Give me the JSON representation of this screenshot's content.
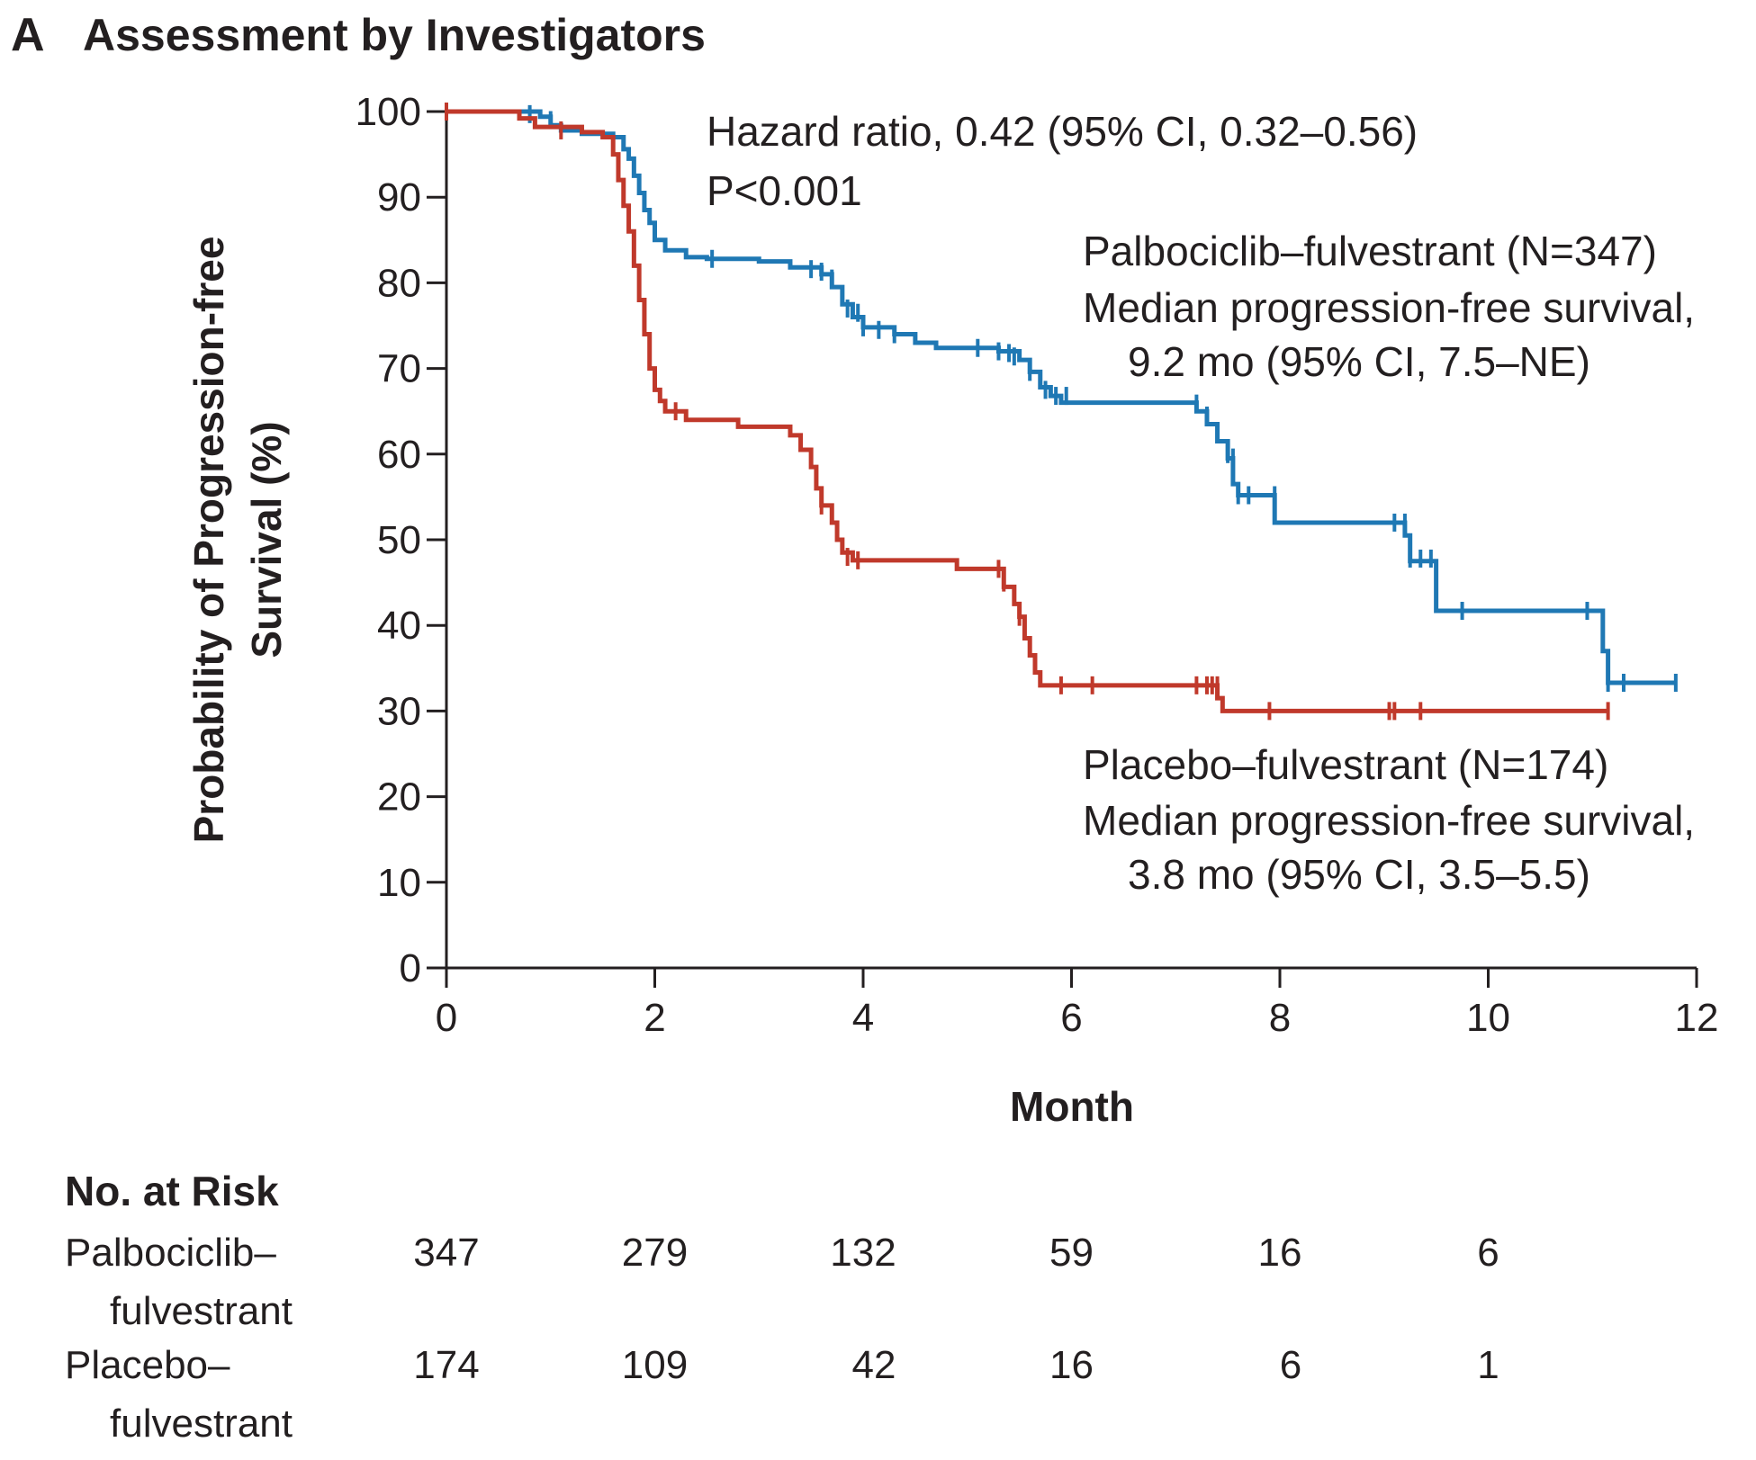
{
  "panel": {
    "letter": "A",
    "title": "Assessment by Investigators"
  },
  "chart_data": {
    "type": "line",
    "subtype": "kaplan-meier step curve with censor marks",
    "xlabel": "Month",
    "ylabel_line1": "Probability of Progression-free",
    "ylabel_line2": "Survival (%)",
    "xlim": [
      0,
      12
    ],
    "ylim": [
      0,
      100
    ],
    "x_ticks": [
      0,
      2,
      4,
      6,
      8,
      10,
      12
    ],
    "y_ticks": [
      0,
      10,
      20,
      30,
      40,
      50,
      60,
      70,
      80,
      90,
      100
    ],
    "grid": false,
    "annotations": {
      "hazard_ratio": "Hazard ratio, 0.42 (95% CI, 0.32–0.56)",
      "p_value": "P<0.001"
    },
    "series": [
      {
        "name": "Palbociclib–fulvestrant (N=347)",
        "color": "#1f78b4",
        "label_lines": [
          "Palbociclib–fulvestrant (N=347)",
          "Median progression-free survival,",
          "9.2 mo (95% CI, 7.5–NE)"
        ],
        "steps": [
          [
            0,
            100
          ],
          [
            0.9,
            99.4
          ],
          [
            1.0,
            98.4
          ],
          [
            1.1,
            97.8
          ],
          [
            1.3,
            97.4
          ],
          [
            1.6,
            97.0
          ],
          [
            1.7,
            95.6
          ],
          [
            1.75,
            94.5
          ],
          [
            1.8,
            92.5
          ],
          [
            1.85,
            90.5
          ],
          [
            1.9,
            88.5
          ],
          [
            1.95,
            87
          ],
          [
            2.0,
            85
          ],
          [
            2.1,
            83.8
          ],
          [
            2.3,
            83.0
          ],
          [
            2.5,
            82.8
          ],
          [
            3.0,
            82.5
          ],
          [
            3.3,
            81.8
          ],
          [
            3.6,
            81.0
          ],
          [
            3.7,
            79.5
          ],
          [
            3.8,
            77.5
          ],
          [
            3.9,
            76
          ],
          [
            4.0,
            74.8
          ],
          [
            4.3,
            74.0
          ],
          [
            4.5,
            73.0
          ],
          [
            4.7,
            72.4
          ],
          [
            5.3,
            72.0
          ],
          [
            5.5,
            71.0
          ],
          [
            5.6,
            69.6
          ],
          [
            5.7,
            67.8
          ],
          [
            5.8,
            66.8
          ],
          [
            5.9,
            66.0
          ],
          [
            7.2,
            65.0
          ],
          [
            7.3,
            63.5
          ],
          [
            7.4,
            61.5
          ],
          [
            7.5,
            59.5
          ],
          [
            7.55,
            56.5
          ],
          [
            7.6,
            55.2
          ],
          [
            7.95,
            52.0
          ],
          [
            9.2,
            50.5
          ],
          [
            9.25,
            47.5
          ],
          [
            9.5,
            41.7
          ],
          [
            11.1,
            37.0
          ],
          [
            11.15,
            33.3
          ],
          [
            11.8,
            33.3
          ]
        ],
        "censors": [
          [
            0.8,
            99.7
          ],
          [
            1.0,
            99.0
          ],
          [
            2.55,
            82.8
          ],
          [
            3.5,
            81.6
          ],
          [
            3.6,
            81.3
          ],
          [
            3.7,
            80.5
          ],
          [
            3.85,
            77.0
          ],
          [
            3.95,
            76.5
          ],
          [
            4.0,
            74.8
          ],
          [
            4.15,
            74.5
          ],
          [
            4.3,
            74.0
          ],
          [
            5.1,
            72.4
          ],
          [
            5.3,
            72.0
          ],
          [
            5.4,
            71.8
          ],
          [
            5.45,
            71.4
          ],
          [
            5.6,
            69.6
          ],
          [
            5.75,
            67.5
          ],
          [
            5.85,
            66.8
          ],
          [
            5.95,
            66.8
          ],
          [
            7.2,
            65.9
          ],
          [
            7.3,
            64.5
          ],
          [
            7.4,
            62.5
          ],
          [
            7.5,
            60.0
          ],
          [
            7.55,
            59.6
          ],
          [
            7.6,
            55.2
          ],
          [
            7.7,
            55.2
          ],
          [
            7.95,
            55.2
          ],
          [
            9.1,
            52.0
          ],
          [
            9.2,
            52.0
          ],
          [
            9.25,
            47.8
          ],
          [
            9.35,
            47.8
          ],
          [
            9.45,
            47.8
          ],
          [
            9.75,
            41.7
          ],
          [
            10.95,
            41.7
          ],
          [
            11.15,
            33.3
          ],
          [
            11.3,
            33.3
          ],
          [
            11.8,
            33.3
          ]
        ]
      },
      {
        "name": "Placebo–fulvestrant (N=174)",
        "color": "#c0392b",
        "label_lines": [
          "Placebo–fulvestrant (N=174)",
          "Median progression-free survival,",
          "3.8 mo (95% CI, 3.5–5.5)"
        ],
        "steps": [
          [
            0,
            100
          ],
          [
            0.7,
            99.2
          ],
          [
            0.85,
            98.2
          ],
          [
            1.3,
            97.6
          ],
          [
            1.5,
            97.0
          ],
          [
            1.6,
            95.0
          ],
          [
            1.65,
            92.0
          ],
          [
            1.7,
            89.0
          ],
          [
            1.75,
            86.0
          ],
          [
            1.8,
            82.0
          ],
          [
            1.85,
            78.0
          ],
          [
            1.9,
            74.0
          ],
          [
            1.95,
            70.0
          ],
          [
            2.0,
            67.5
          ],
          [
            2.05,
            66.2
          ],
          [
            2.1,
            65.0
          ],
          [
            2.3,
            64.0
          ],
          [
            2.8,
            63.2
          ],
          [
            3.3,
            62.2
          ],
          [
            3.4,
            60.5
          ],
          [
            3.5,
            58.5
          ],
          [
            3.55,
            56.0
          ],
          [
            3.6,
            54.0
          ],
          [
            3.7,
            52.0
          ],
          [
            3.75,
            50.0
          ],
          [
            3.8,
            48.5
          ],
          [
            3.9,
            47.6
          ],
          [
            4.9,
            46.6
          ],
          [
            5.35,
            44.5
          ],
          [
            5.45,
            42.5
          ],
          [
            5.5,
            41.0
          ],
          [
            5.55,
            38.5
          ],
          [
            5.6,
            36.5
          ],
          [
            5.65,
            34.5
          ],
          [
            5.7,
            33.0
          ],
          [
            7.4,
            31.5
          ],
          [
            7.45,
            30.0
          ],
          [
            11.15,
            30.0
          ]
        ],
        "censors": [
          [
            0,
            100
          ],
          [
            1.1,
            97.8
          ],
          [
            2.2,
            65.0
          ],
          [
            3.6,
            54.0
          ],
          [
            3.85,
            48.0
          ],
          [
            3.95,
            47.6
          ],
          [
            5.3,
            46.6
          ],
          [
            5.35,
            45.0
          ],
          [
            5.5,
            41.0
          ],
          [
            5.9,
            33.0
          ],
          [
            6.2,
            33.0
          ],
          [
            7.2,
            33.0
          ],
          [
            7.3,
            33.0
          ],
          [
            7.35,
            33.0
          ],
          [
            7.4,
            33.0
          ],
          [
            7.9,
            30.0
          ],
          [
            9.05,
            30.0
          ],
          [
            9.1,
            30.0
          ],
          [
            9.35,
            30.0
          ],
          [
            11.15,
            30.0
          ]
        ]
      }
    ]
  },
  "risk_table": {
    "title": "No. at Risk",
    "rows": [
      {
        "label_line1": "Palbociclib–",
        "label_line2": "fulvestrant",
        "values": [
          "347",
          "279",
          "132",
          "59",
          "16",
          "6"
        ]
      },
      {
        "label_line1": "Placebo–",
        "label_line2": "fulvestrant",
        "values": [
          "174",
          "109",
          "42",
          "16",
          "6",
          "1"
        ]
      }
    ]
  }
}
